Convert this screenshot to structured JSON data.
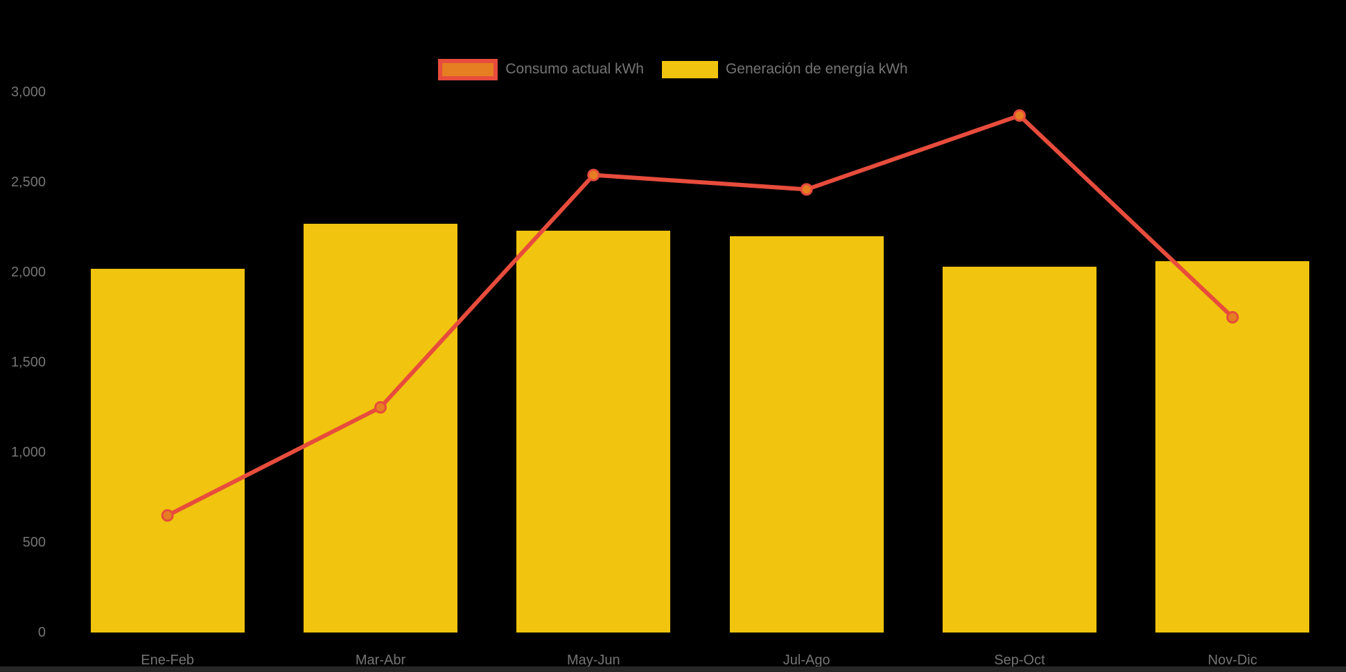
{
  "canvas": {
    "background": "#000000",
    "footer_bar_color": "#272727",
    "axis_text_color": "#757575"
  },
  "legend": {
    "items": [
      {
        "label": "Consumo actual kWh",
        "marker": "line-series",
        "marker_fill": "#E67E22",
        "marker_border": "#E74C3C"
      },
      {
        "label": "Generación de energía kWh",
        "marker": "bar-series",
        "marker_fill": "#F1C40F",
        "marker_border": ""
      }
    ],
    "text_color": "#757575"
  },
  "chart_data": {
    "type": "bar",
    "subtype": "bar-line-combo",
    "title": "",
    "xlabel": "",
    "ylabel": "",
    "categories": [
      "Ene-Feb",
      "Mar-Abr",
      "May-Jun",
      "Jul-Ago",
      "Sep-Oct",
      "Nov-Dic"
    ],
    "series": [
      {
        "name": "Consumo actual kWh",
        "type": "line",
        "color": "#E74C3C",
        "point_fill": "#E67E22",
        "point_border": "#E74C3C",
        "values": [
          650,
          1250,
          2540,
          2460,
          2870,
          1750
        ]
      },
      {
        "name": "Generación de energía kWh",
        "type": "bar",
        "color": "#F1C40F",
        "values": [
          2020,
          2270,
          2230,
          2200,
          2030,
          2060
        ]
      }
    ],
    "y_axis": {
      "min": 0,
      "max": 3000,
      "tick_interval": 500,
      "tick_labels": [
        "0",
        "500",
        "1,000",
        "1,500",
        "2,000",
        "2,500",
        "3,000"
      ]
    },
    "x_axis": {
      "labels": [
        "Ene-Feb",
        "Mar-Abr",
        "May-Jun",
        "Jul-Ago",
        "Sep-Oct",
        "Nov-Dic"
      ]
    },
    "grid": false,
    "legend_position": "top-center"
  }
}
